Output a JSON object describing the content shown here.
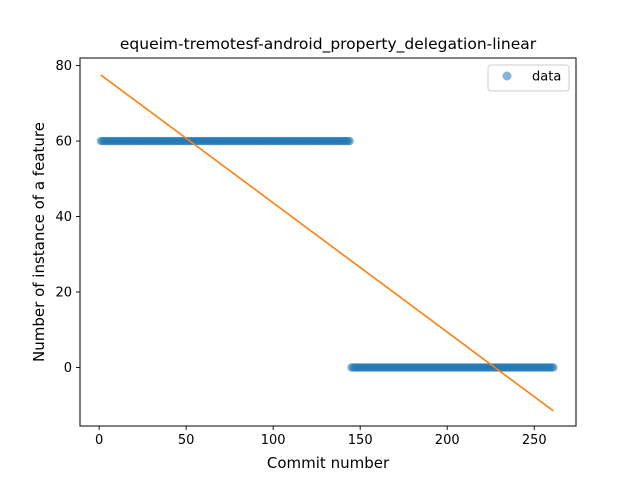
{
  "chart_data": {
    "type": "scatter",
    "title": "equeim-tremotesf-android_property_delegation-linear",
    "xlabel": "Commit number",
    "ylabel": "Number of instance of a feature",
    "xlim": [
      -11,
      274
    ],
    "ylim": [
      -15.5,
      82
    ],
    "xticks": [
      0,
      50,
      100,
      150,
      200,
      250
    ],
    "yticks": [
      0,
      20,
      40,
      60,
      80
    ],
    "legend": {
      "placement": "top-right",
      "entries": [
        "data"
      ]
    },
    "grid": false,
    "series": [
      {
        "name": "data",
        "kind": "scatter",
        "color": "#1f77b4",
        "segments": [
          {
            "x_start": 1,
            "x_end": 144,
            "y": 60
          },
          {
            "x_start": 145,
            "x_end": 261,
            "y": 0
          }
        ]
      },
      {
        "kind": "line",
        "color": "#ff7f0e",
        "x": [
          1,
          261
        ],
        "y": [
          77.5,
          -11.5
        ]
      }
    ]
  }
}
